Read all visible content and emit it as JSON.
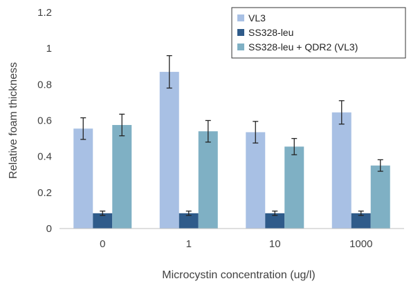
{
  "chart_data": {
    "type": "bar",
    "title": "",
    "xlabel": "Microcystin concentration (ug/l)",
    "ylabel": "Relative foam thickness",
    "categories": [
      "0",
      "1",
      "10",
      "1000"
    ],
    "ylim": [
      0,
      1.2
    ],
    "yticks": [
      "0",
      "0.2",
      "0.4",
      "0.6",
      "0.8",
      "1",
      "1.2"
    ],
    "grid": false,
    "legend_position": "top-right",
    "error_bars": true,
    "series": [
      {
        "name": "VL3",
        "color": "#a8c0e4",
        "values": [
          0.555,
          0.87,
          0.535,
          0.645
        ],
        "errors": [
          0.06,
          0.09,
          0.06,
          0.065
        ]
      },
      {
        "name": "SS328-leu",
        "color": "#2f5b8a",
        "values": [
          0.085,
          0.085,
          0.085,
          0.085
        ],
        "errors": [
          0.012,
          0.012,
          0.012,
          0.012
        ]
      },
      {
        "name": "SS328-leu + QDR2 (VL3)",
        "color": "#7fb0c4",
        "values": [
          0.575,
          0.54,
          0.455,
          0.35
        ],
        "errors": [
          0.06,
          0.06,
          0.045,
          0.032
        ]
      }
    ]
  }
}
